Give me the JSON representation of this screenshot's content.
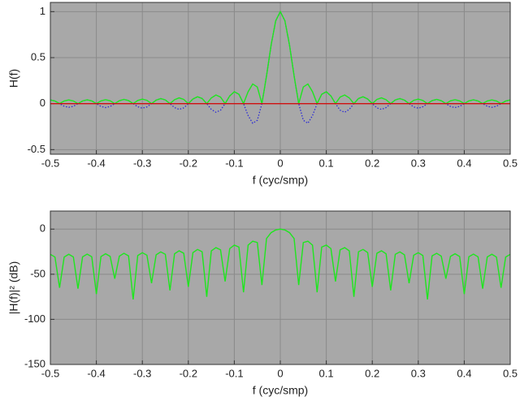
{
  "chart_data": [
    {
      "type": "line",
      "xlabel": "f (cyc/smp)",
      "ylabel": "H(f)",
      "x": [
        -0.5,
        -0.49,
        -0.48,
        -0.47,
        -0.46,
        -0.45,
        -0.44,
        -0.43,
        -0.42,
        -0.41,
        -0.4,
        -0.39,
        -0.38,
        -0.37,
        -0.36,
        -0.35,
        -0.34,
        -0.33,
        -0.32,
        -0.31,
        -0.3,
        -0.29,
        -0.28,
        -0.27,
        -0.26,
        -0.25,
        -0.24,
        -0.23,
        -0.22,
        -0.21,
        -0.2,
        -0.19,
        -0.18,
        -0.17,
        -0.16,
        -0.15,
        -0.14,
        -0.13,
        -0.12,
        -0.11,
        -0.1,
        -0.09,
        -0.08,
        -0.07,
        -0.06,
        -0.05,
        -0.04,
        -0.03,
        -0.02,
        -0.01,
        0,
        0.01,
        0.02,
        0.03,
        0.04,
        0.05,
        0.06,
        0.07,
        0.08,
        0.09,
        0.1,
        0.11,
        0.12,
        0.13,
        0.14,
        0.15,
        0.16,
        0.17,
        0.18,
        0.19,
        0.2,
        0.21,
        0.22,
        0.23,
        0.24,
        0.25,
        0.26,
        0.27,
        0.28,
        0.29,
        0.3,
        0.31,
        0.32,
        0.33,
        0.34,
        0.35,
        0.36,
        0.37,
        0.38,
        0.39,
        0.4,
        0.41,
        0.42,
        0.43,
        0.44,
        0.45,
        0.46,
        0.47,
        0.48,
        0.49,
        0.5
      ],
      "series": [
        {
          "color": "#2a2ad6",
          "linestyle": "dotted",
          "values": [
            0.04,
            0.0283,
            0,
            -0.0284,
            -0.0403,
            -0.0286,
            0,
            0.029,
            0.0413,
            0.0295,
            0,
            -0.0301,
            -0.043,
            -0.0308,
            0,
            0.0317,
            0.0456,
            0.0329,
            0,
            -0.0342,
            -0.0494,
            -0.0358,
            0,
            0.0377,
            0.0549,
            0.04,
            0,
            -0.0428,
            -0.0628,
            -0.0461,
            0,
            0.0503,
            0.0747,
            0.0556,
            0,
            -0.0623,
            -0.0939,
            -0.0712,
            0,
            0.0835,
            0.1294,
            0.1014,
            0,
            -0.1297,
            -0.2135,
            -0.1808,
            0,
            0.3006,
            0.637,
            0.9005,
            1,
            0.9005,
            0.637,
            0.3006,
            0,
            -0.1808,
            -0.2135,
            -0.1297,
            0,
            0.1014,
            0.1294,
            0.0835,
            0,
            -0.0712,
            -0.0939,
            -0.0623,
            0,
            0.0556,
            0.0747,
            0.0503,
            0,
            -0.0461,
            -0.0628,
            -0.0428,
            0,
            0.04,
            0.0549,
            0.0377,
            0,
            -0.0358,
            -0.0494,
            -0.0342,
            0,
            0.0329,
            0.0456,
            0.0317,
            0,
            -0.0308,
            -0.043,
            -0.0301,
            0,
            0.0295,
            0.0413,
            0.029,
            0,
            -0.0286,
            -0.0403,
            -0.0284,
            0,
            0.0283,
            0.04
          ]
        },
        {
          "color": "#1ee61e",
          "linestyle": "solid",
          "values": [
            0.04,
            0.0283,
            0,
            0.0284,
            0.0403,
            0.0286,
            0,
            0.029,
            0.0413,
            0.0295,
            0,
            0.0301,
            0.043,
            0.0308,
            0,
            0.0317,
            0.0456,
            0.0329,
            0,
            0.0342,
            0.0494,
            0.0358,
            0,
            0.0377,
            0.0549,
            0.04,
            0,
            0.0428,
            0.0628,
            0.0461,
            0,
            0.0503,
            0.0747,
            0.0556,
            0,
            0.0623,
            0.0939,
            0.0712,
            0,
            0.0835,
            0.1294,
            0.1014,
            0,
            0.1297,
            0.2135,
            0.1808,
            0,
            0.3006,
            0.637,
            0.9005,
            1,
            0.9005,
            0.637,
            0.3006,
            0,
            0.1808,
            0.2135,
            0.1297,
            0,
            0.1014,
            0.1294,
            0.0835,
            0,
            0.0712,
            0.0939,
            0.0623,
            0,
            0.0556,
            0.0747,
            0.0503,
            0,
            0.0461,
            0.0628,
            0.0428,
            0,
            0.04,
            0.0549,
            0.0377,
            0,
            0.0358,
            0.0494,
            0.0342,
            0,
            0.0329,
            0.0456,
            0.0317,
            0,
            0.0308,
            0.043,
            0.0301,
            0,
            0.0295,
            0.0413,
            0.029,
            0,
            0.0286,
            0.0403,
            0.0284,
            0,
            0.0283,
            0.04
          ]
        },
        {
          "color": "#d01010",
          "linestyle": "solid",
          "x": [
            -0.5,
            0.5
          ],
          "values": [
            0,
            0
          ]
        }
      ],
      "xlim": [
        -0.5,
        0.5
      ],
      "xticks": [
        -0.5,
        -0.4,
        -0.3,
        -0.2,
        -0.1,
        0,
        0.1,
        0.2,
        0.3,
        0.4,
        0.5
      ],
      "ylim": [
        -0.55,
        1.1
      ],
      "yticks": [
        -0.5,
        0,
        0.5,
        1
      ],
      "grid": true,
      "background": "#a8a8a8"
    },
    {
      "type": "line",
      "xlabel": "f (cyc/smp)",
      "ylabel": "|H(f)|² (dB)",
      "x": [
        -0.5,
        -0.49,
        -0.48,
        -0.47,
        -0.46,
        -0.45,
        -0.44,
        -0.43,
        -0.42,
        -0.41,
        -0.4,
        -0.39,
        -0.38,
        -0.37,
        -0.36,
        -0.35,
        -0.34,
        -0.33,
        -0.32,
        -0.31,
        -0.3,
        -0.29,
        -0.28,
        -0.27,
        -0.26,
        -0.25,
        -0.24,
        -0.23,
        -0.22,
        -0.21,
        -0.2,
        -0.19,
        -0.18,
        -0.17,
        -0.16,
        -0.15,
        -0.14,
        -0.13,
        -0.12,
        -0.11,
        -0.1,
        -0.09,
        -0.08,
        -0.07,
        -0.06,
        -0.05,
        -0.04,
        -0.03,
        -0.02,
        -0.01,
        0,
        0.01,
        0.02,
        0.03,
        0.04,
        0.05,
        0.06,
        0.07,
        0.08,
        0.09,
        0.1,
        0.11,
        0.12,
        0.13,
        0.14,
        0.15,
        0.16,
        0.17,
        0.18,
        0.19,
        0.2,
        0.21,
        0.22,
        0.23,
        0.24,
        0.25,
        0.26,
        0.27,
        0.28,
        0.29,
        0.3,
        0.31,
        0.32,
        0.33,
        0.34,
        0.35,
        0.36,
        0.37,
        0.38,
        0.39,
        0.4,
        0.41,
        0.42,
        0.43,
        0.44,
        0.45,
        0.46,
        0.47,
        0.48,
        0.49,
        0.5
      ],
      "series": [
        {
          "color": "#1ee61e",
          "linestyle": "solid",
          "values": [
            -27.96,
            -30.96,
            -65,
            -30.93,
            -27.89,
            -30.87,
            -66,
            -30.75,
            -27.68,
            -30.6,
            -72,
            -30.43,
            -27.33,
            -30.23,
            -55,
            -29.98,
            -26.82,
            -29.66,
            -78,
            -29.32,
            -26.13,
            -28.92,
            -60,
            -28.47,
            -25.21,
            -27.96,
            -68,
            -27.37,
            -24.04,
            -26.73,
            -64,
            -25.97,
            -22.53,
            -25.1,
            -75,
            -24.11,
            -20.55,
            -22.95,
            -58,
            -21.57,
            -17.76,
            -19.88,
            -70,
            -17.74,
            -13.41,
            -14.86,
            -62,
            -10.44,
            -3.92,
            -0.91,
            0,
            -0.91,
            -3.92,
            -10.44,
            -62,
            -14.86,
            -13.41,
            -17.74,
            -70,
            -19.88,
            -17.76,
            -21.57,
            -58,
            -22.95,
            -20.55,
            -24.11,
            -75,
            -25.1,
            -22.53,
            -25.97,
            -64,
            -26.73,
            -24.04,
            -27.37,
            -68,
            -27.96,
            -25.21,
            -28.47,
            -60,
            -28.92,
            -26.13,
            -29.32,
            -78,
            -29.66,
            -26.82,
            -29.98,
            -55,
            -30.23,
            -27.33,
            -30.43,
            -72,
            -30.6,
            -27.68,
            -30.75,
            -66,
            -30.87,
            -27.89,
            -30.93,
            -65,
            -30.96,
            -27.96
          ]
        }
      ],
      "xlim": [
        -0.5,
        0.5
      ],
      "xticks": [
        -0.5,
        -0.4,
        -0.3,
        -0.2,
        -0.1,
        0,
        0.1,
        0.2,
        0.3,
        0.4,
        0.5
      ],
      "ylim": [
        -150,
        20
      ],
      "yticks": [
        -150,
        -100,
        -50,
        0
      ],
      "grid": true,
      "background": "#a8a8a8"
    }
  ]
}
